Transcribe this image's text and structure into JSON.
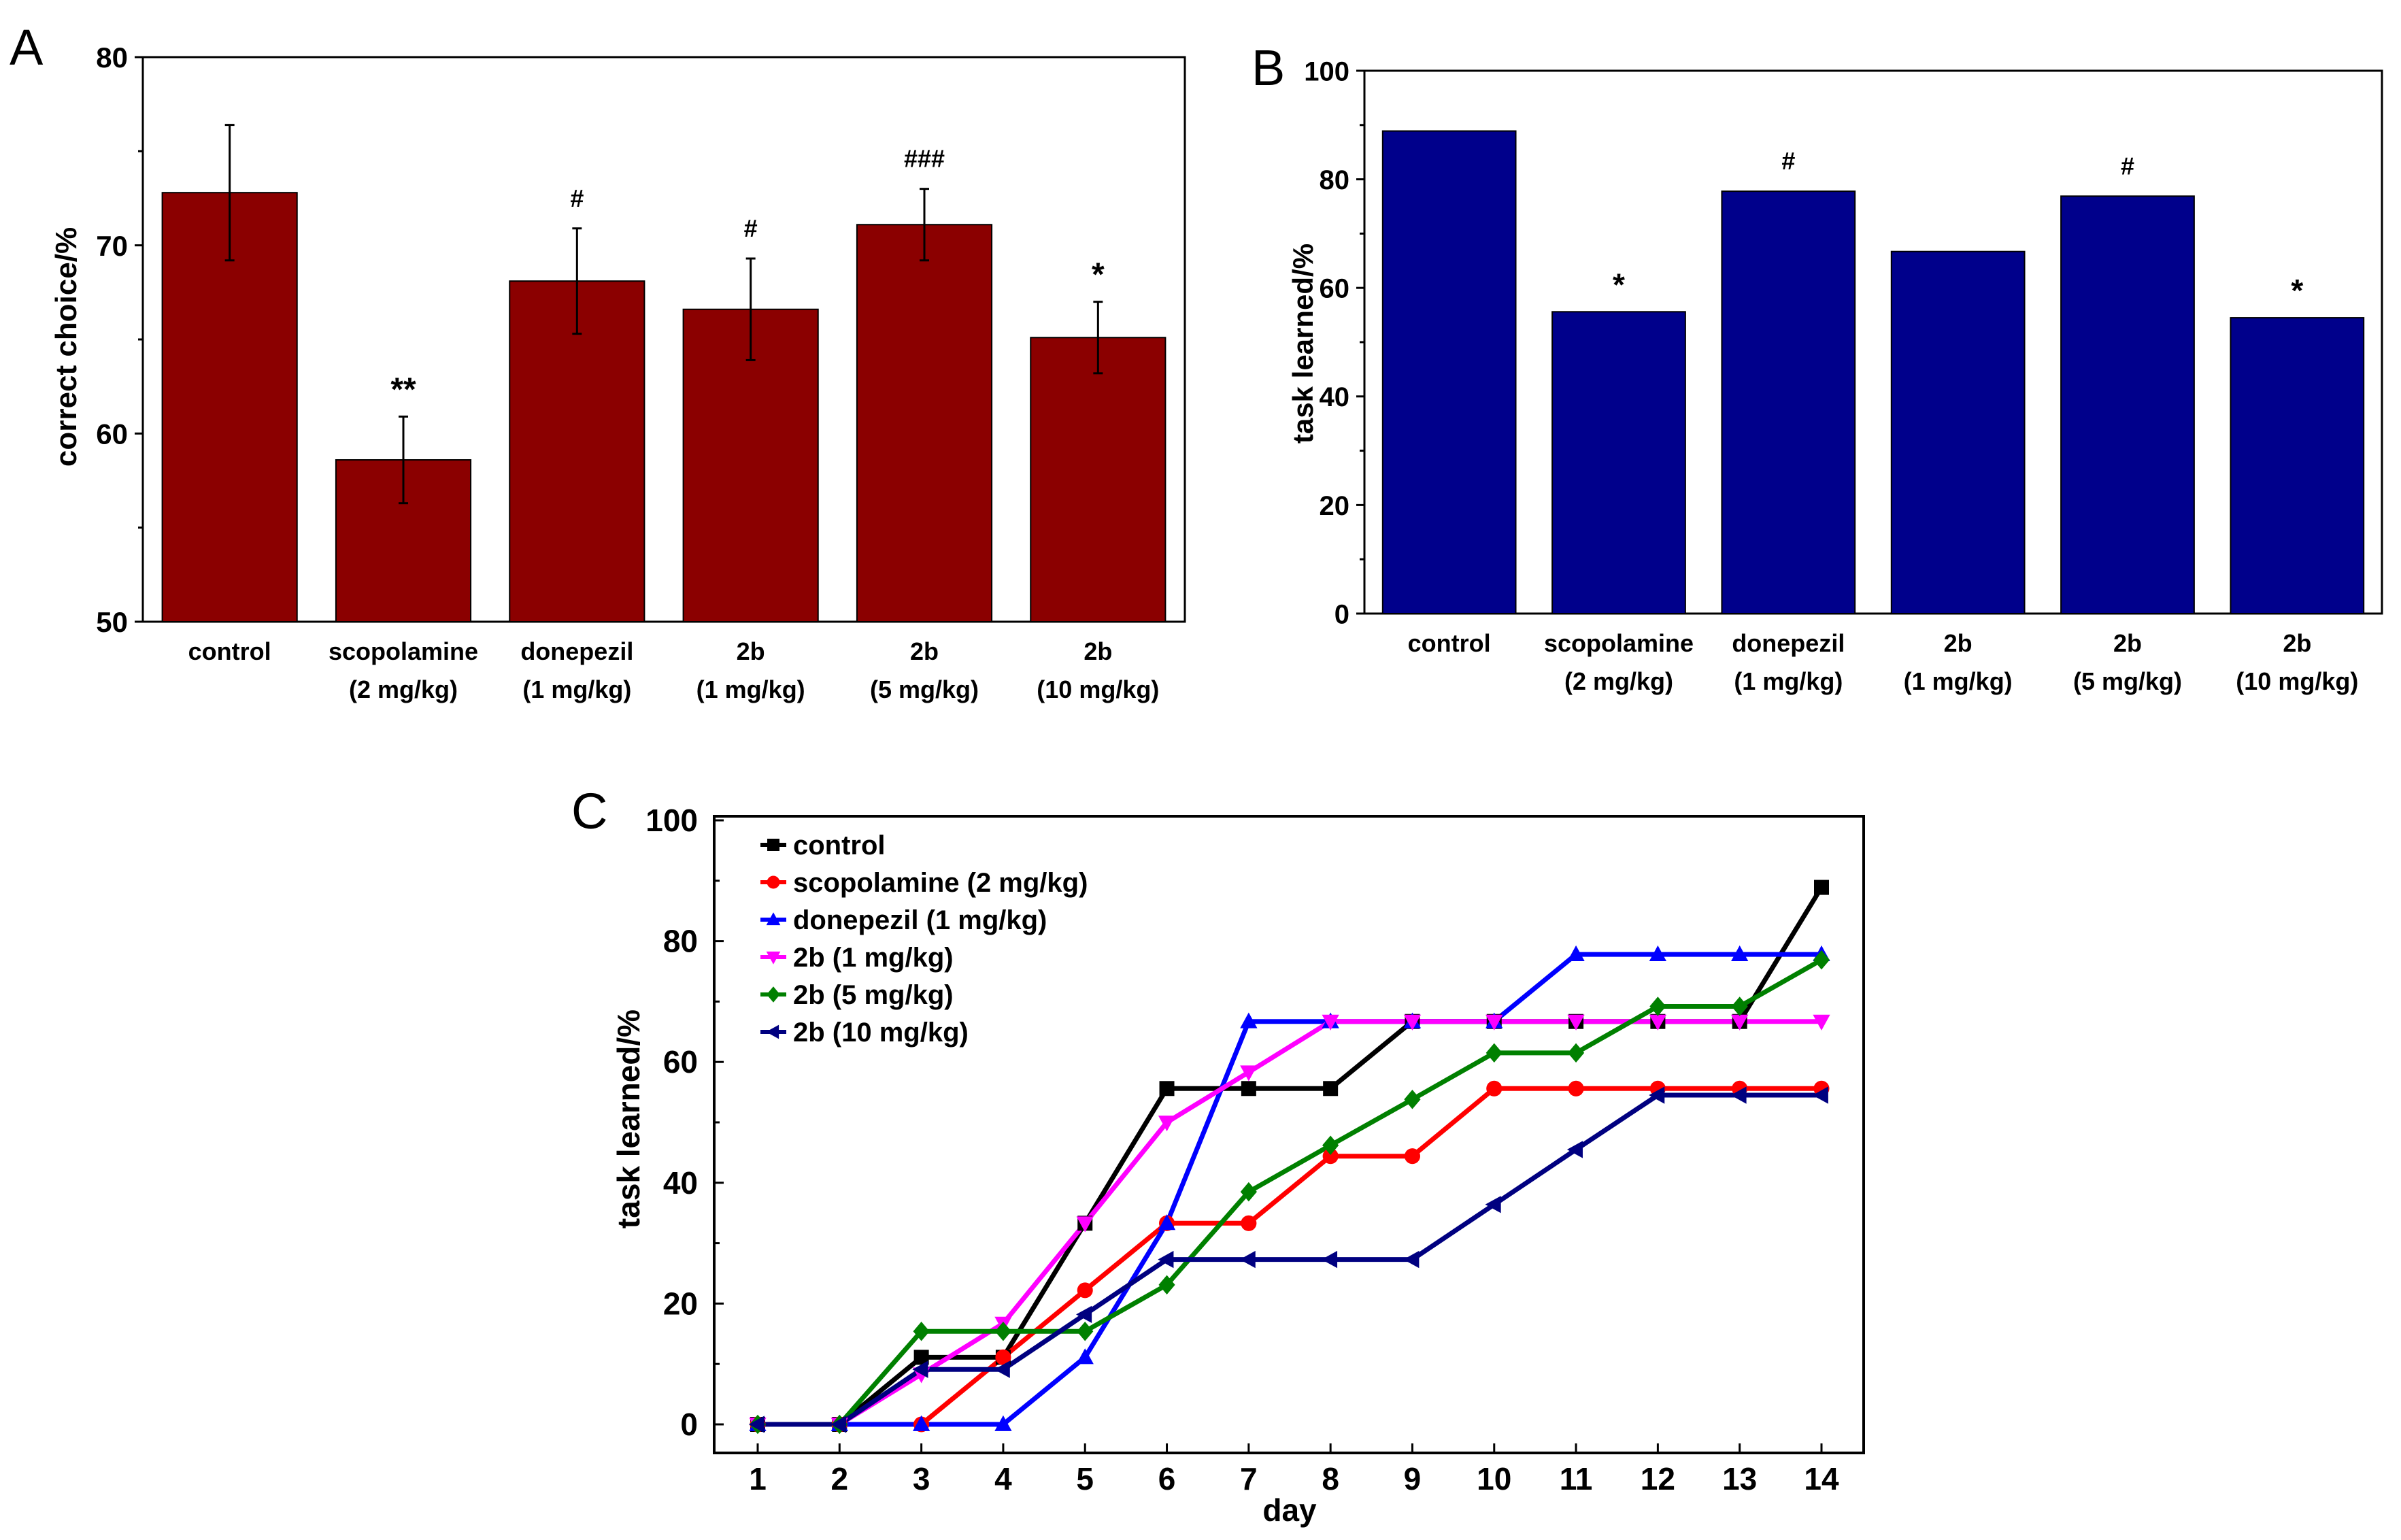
{
  "chart_data": [
    {
      "panel_label": "A",
      "type": "bar",
      "ylabel": "correct choice/%",
      "xlabel": "",
      "ylim": [
        50,
        80
      ],
      "yticks": [
        50,
        60,
        70,
        80
      ],
      "bar_color": "#8b0000",
      "categories": [
        [
          "control"
        ],
        [
          "scopolamine",
          "(2 mg/kg)"
        ],
        [
          "donepezil",
          "(1 mg/kg)"
        ],
        [
          "2b",
          "(1 mg/kg)"
        ],
        [
          "2b",
          "(5 mg/kg)"
        ],
        [
          "2b",
          "(10 mg/kg)"
        ]
      ],
      "values": [
        72.8,
        58.6,
        68.1,
        66.6,
        71.1,
        65.1
      ],
      "errors": [
        3.6,
        2.3,
        2.8,
        2.7,
        1.9,
        1.9
      ],
      "annotations": [
        "",
        "**",
        "#",
        "#",
        "###",
        "*"
      ]
    },
    {
      "panel_label": "B",
      "type": "bar",
      "ylabel": "task learned/%",
      "xlabel": "",
      "ylim": [
        0,
        100
      ],
      "yticks": [
        0,
        20,
        40,
        60,
        80,
        100
      ],
      "bar_color": "#00008b",
      "categories": [
        [
          "control"
        ],
        [
          "scopolamine",
          "(2 mg/kg)"
        ],
        [
          "donepezil",
          "(1 mg/kg)"
        ],
        [
          "2b",
          "(1 mg/kg)"
        ],
        [
          "2b",
          "(5 mg/kg)"
        ],
        [
          "2b",
          "(10 mg/kg)"
        ]
      ],
      "values": [
        88.9,
        55.6,
        77.8,
        66.7,
        76.9,
        54.5
      ],
      "annotations": [
        "",
        "*",
        "#",
        "",
        "#",
        "*"
      ]
    },
    {
      "panel_label": "C",
      "type": "line",
      "ylabel": "task learned/%",
      "xlabel": "day",
      "ylim": [
        0,
        100
      ],
      "yticks": [
        0,
        20,
        40,
        60,
        80,
        100
      ],
      "xlim": [
        1,
        14
      ],
      "x": [
        1,
        2,
        3,
        4,
        5,
        6,
        7,
        8,
        9,
        10,
        11,
        12,
        13,
        14
      ],
      "legend_position": "top-left",
      "series": [
        {
          "name": "control",
          "color": "#000000",
          "marker": "square",
          "values": [
            0,
            0,
            11.1,
            11.1,
            33.3,
            55.6,
            55.6,
            55.6,
            66.7,
            66.7,
            66.7,
            66.7,
            66.7,
            88.9
          ]
        },
        {
          "name": "scopolamine (2 mg/kg)",
          "color": "#ff0000",
          "marker": "circle",
          "values": [
            0,
            0,
            0,
            11.1,
            22.2,
            33.3,
            33.3,
            44.4,
            44.4,
            55.6,
            55.6,
            55.6,
            55.6,
            55.6
          ]
        },
        {
          "name": "donepezil (1 mg/kg)",
          "color": "#0000ff",
          "marker": "triangle-up",
          "values": [
            0,
            0,
            0,
            0,
            11.1,
            33.3,
            66.7,
            66.7,
            66.7,
            66.7,
            77.8,
            77.8,
            77.8,
            77.8
          ]
        },
        {
          "name": "2b (1 mg/kg)",
          "color": "#ff00ff",
          "marker": "triangle-down",
          "values": [
            0,
            0,
            8.3,
            16.7,
            33.3,
            50.0,
            58.3,
            66.7,
            66.7,
            66.7,
            66.7,
            66.7,
            66.7,
            66.7
          ]
        },
        {
          "name": "2b (5 mg/kg)",
          "color": "#008000",
          "marker": "diamond",
          "values": [
            0,
            0,
            15.4,
            15.4,
            15.4,
            23.1,
            38.5,
            46.2,
            53.8,
            61.5,
            61.5,
            69.2,
            69.2,
            76.9
          ]
        },
        {
          "name": "2b (10 mg/kg)",
          "color": "#000080",
          "marker": "triangle-left",
          "values": [
            0,
            0,
            9.1,
            9.1,
            18.2,
            27.3,
            27.3,
            27.3,
            27.3,
            36.4,
            45.5,
            54.5,
            54.5,
            54.5
          ]
        }
      ]
    }
  ]
}
